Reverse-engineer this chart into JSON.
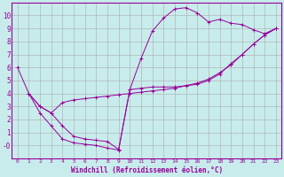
{
  "xlabel": "Windchill (Refroidissement éolien,°C)",
  "bg_color": "#c8ecec",
  "grid_color": "#aaaaaa",
  "line_color": "#990099",
  "xlim": [
    -0.5,
    23.5
  ],
  "ylim": [
    -1,
    11
  ],
  "xticks": [
    0,
    1,
    2,
    3,
    4,
    5,
    6,
    7,
    8,
    9,
    10,
    11,
    12,
    13,
    14,
    15,
    16,
    17,
    18,
    19,
    20,
    21,
    22,
    23
  ],
  "yticks": [
    0,
    1,
    2,
    3,
    4,
    5,
    6,
    7,
    8,
    9,
    10
  ],
  "ytick_labels": [
    "-0",
    "1",
    "2",
    "3",
    "4",
    "5",
    "6",
    "7",
    "8",
    "9",
    "10"
  ],
  "curve1_x": [
    0,
    1,
    2,
    3,
    4,
    5,
    6,
    7,
    8,
    9,
    10,
    11,
    12,
    13,
    14,
    15,
    16,
    17,
    18,
    19,
    20,
    21,
    22,
    23
  ],
  "curve1_y": [
    6.0,
    4.0,
    3.0,
    2.5,
    1.5,
    0.7,
    0.5,
    0.4,
    0.3,
    -0.3,
    4.3,
    6.7,
    8.8,
    9.8,
    10.5,
    10.6,
    10.2,
    9.5,
    9.7,
    9.4,
    9.3,
    8.9,
    8.6,
    9.0
  ],
  "curve2_x": [
    1,
    2,
    3,
    4,
    5,
    6,
    7,
    8,
    9,
    10,
    11,
    12,
    13,
    14,
    15,
    16,
    17,
    18,
    19,
    20,
    21,
    22,
    23
  ],
  "curve2_y": [
    4.0,
    3.0,
    2.5,
    3.3,
    3.5,
    3.6,
    3.7,
    3.8,
    3.9,
    4.0,
    4.1,
    4.2,
    4.3,
    4.4,
    4.6,
    4.8,
    5.1,
    5.6,
    6.2,
    7.0,
    7.8,
    8.5,
    9.0
  ],
  "curve3_x": [
    1,
    2,
    3,
    4,
    5,
    6,
    7,
    8,
    9,
    10,
    11,
    12,
    13,
    14,
    15,
    16,
    17,
    18,
    19,
    20,
    21,
    22,
    23
  ],
  "curve3_y": [
    4.0,
    2.5,
    1.5,
    0.5,
    0.2,
    0.1,
    0.0,
    -0.2,
    -0.35,
    4.3,
    4.4,
    4.5,
    4.5,
    4.5,
    4.6,
    4.7,
    5.0,
    5.5,
    6.3,
    7.0,
    7.8,
    8.5,
    9.0
  ]
}
